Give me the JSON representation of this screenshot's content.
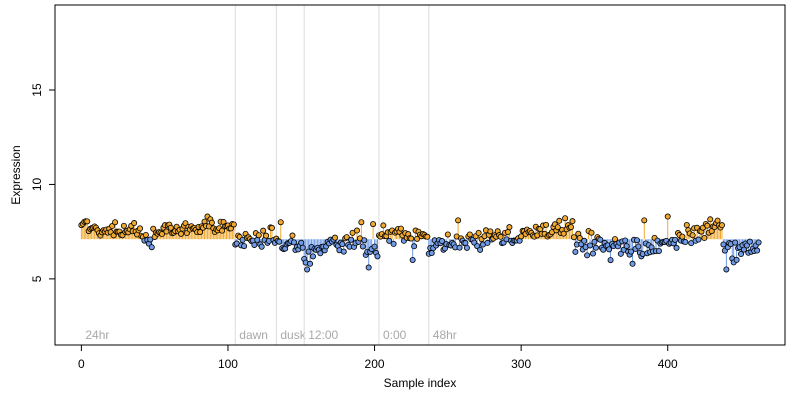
{
  "chart_data": {
    "type": "scatter",
    "xlabel": "Sample index",
    "ylabel": "Expression",
    "xlim": [
      -18,
      480
    ],
    "ylim": [
      1.5,
      19.5
    ],
    "x_ticks": [
      0,
      100,
      200,
      300,
      400
    ],
    "y_ticks": [
      5,
      10,
      15
    ],
    "baseline": 7.1,
    "grid": false,
    "legend": "none",
    "colors": {
      "above": "#f0a830",
      "below": "#6f9ae6",
      "region_line": "#dcdcdc",
      "region_text": "#a8a8a8",
      "point_stroke": "#000000",
      "frame": "#000000"
    },
    "regions": [
      {
        "label": "24hr",
        "start": 0
      },
      {
        "label": "dawn",
        "start": 105
      },
      {
        "label": "dusk",
        "start": 133
      },
      {
        "label": "12:00",
        "start": 152
      },
      {
        "label": "0:00",
        "start": 203
      },
      {
        "label": "48hr",
        "start": 237
      }
    ],
    "segments": [
      {
        "start": 0,
        "end": 4,
        "from": 7.8,
        "to": 8.1,
        "noise": 0.1,
        "seed": 1
      },
      {
        "start": 5,
        "end": 15,
        "from": 7.7,
        "to": 7.5,
        "noise": 0.15,
        "seed": 2
      },
      {
        "start": 16,
        "end": 40,
        "from": 7.5,
        "to": 7.6,
        "noise": 0.2,
        "seed": 3
      },
      {
        "start": 41,
        "end": 48,
        "from": 7.3,
        "to": 6.9,
        "noise": 0.2,
        "seed": 4
      },
      {
        "start": 49,
        "end": 90,
        "from": 7.4,
        "to": 7.9,
        "noise": 0.25,
        "seed": 5
      },
      {
        "start": 91,
        "end": 104,
        "from": 7.6,
        "to": 7.9,
        "noise": 0.2,
        "seed": 6
      },
      {
        "start": 105,
        "end": 132,
        "from": 7.1,
        "to": 7.2,
        "noise": 0.35,
        "seed": 7
      },
      {
        "start": 133,
        "end": 151,
        "from": 7.0,
        "to": 6.6,
        "noise": 0.35,
        "seed": 8
      },
      {
        "start": 152,
        "end": 170,
        "from": 6.0,
        "to": 7.0,
        "noise": 0.35,
        "seed": 9
      },
      {
        "start": 171,
        "end": 202,
        "from": 7.0,
        "to": 6.7,
        "noise": 0.45,
        "seed": 10
      },
      {
        "start": 203,
        "end": 236,
        "from": 7.4,
        "to": 7.2,
        "noise": 0.35,
        "seed": 11
      },
      {
        "start": 237,
        "end": 255,
        "from": 6.5,
        "to": 7.0,
        "noise": 0.35,
        "seed": 12
      },
      {
        "start": 256,
        "end": 300,
        "from": 7.0,
        "to": 7.3,
        "noise": 0.35,
        "seed": 13
      },
      {
        "start": 301,
        "end": 335,
        "from": 7.4,
        "to": 7.7,
        "noise": 0.3,
        "seed": 14
      },
      {
        "start": 336,
        "end": 360,
        "from": 7.1,
        "to": 6.7,
        "noise": 0.4,
        "seed": 15
      },
      {
        "start": 361,
        "end": 395,
        "from": 6.6,
        "to": 6.8,
        "noise": 0.45,
        "seed": 16
      },
      {
        "start": 396,
        "end": 425,
        "from": 7.0,
        "to": 7.4,
        "noise": 0.4,
        "seed": 17
      },
      {
        "start": 426,
        "end": 437,
        "from": 7.6,
        "to": 7.9,
        "noise": 0.3,
        "seed": 18
      },
      {
        "start": 438,
        "end": 462,
        "from": 6.5,
        "to": 6.6,
        "noise": 0.4,
        "seed": 19
      }
    ],
    "highlights": [
      {
        "x": 23,
        "y": 8.0
      },
      {
        "x": 86,
        "y": 8.3
      },
      {
        "x": 136,
        "y": 8.0
      },
      {
        "x": 154,
        "y": 5.5
      },
      {
        "x": 156,
        "y": 5.8
      },
      {
        "x": 191,
        "y": 8.0
      },
      {
        "x": 196,
        "y": 5.6
      },
      {
        "x": 199,
        "y": 7.9
      },
      {
        "x": 226,
        "y": 6.0
      },
      {
        "x": 257,
        "y": 8.1
      },
      {
        "x": 376,
        "y": 5.8
      },
      {
        "x": 384,
        "y": 8.1
      },
      {
        "x": 400,
        "y": 8.3
      },
      {
        "x": 440,
        "y": 5.5
      }
    ]
  }
}
